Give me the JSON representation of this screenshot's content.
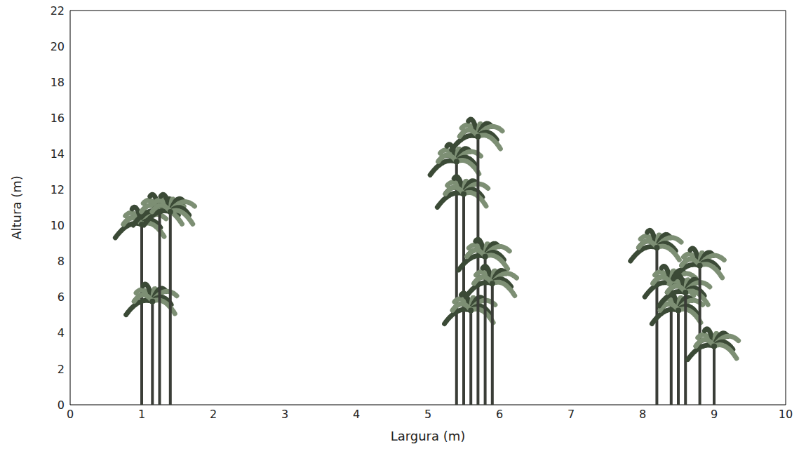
{
  "chart_data": {
    "type": "scatter",
    "x_label": "Largura (m)",
    "y_label": "Altura (m)",
    "x": [
      1.0,
      1.15,
      1.25,
      1.4,
      5.4,
      5.5,
      5.6,
      5.7,
      5.8,
      5.9,
      8.2,
      8.4,
      8.5,
      8.6,
      8.8,
      9.0
    ],
    "values": [
      10.3,
      6.0,
      11.0,
      11.0,
      13.8,
      12.0,
      5.5,
      15.2,
      8.5,
      7.0,
      9.0,
      7.0,
      5.5,
      6.5,
      8.0,
      3.5
    ],
    "color": "#3b4a36",
    "marker": "palm",
    "xlim": [
      0,
      10
    ],
    "ylim": [
      0,
      22
    ],
    "xticks": [
      0,
      1,
      2,
      3,
      4,
      5,
      6,
      7,
      8,
      9,
      10
    ],
    "yticks": [
      0,
      2,
      4,
      6,
      8,
      10,
      12,
      14,
      16,
      18,
      20,
      22
    ],
    "grid": false
  }
}
